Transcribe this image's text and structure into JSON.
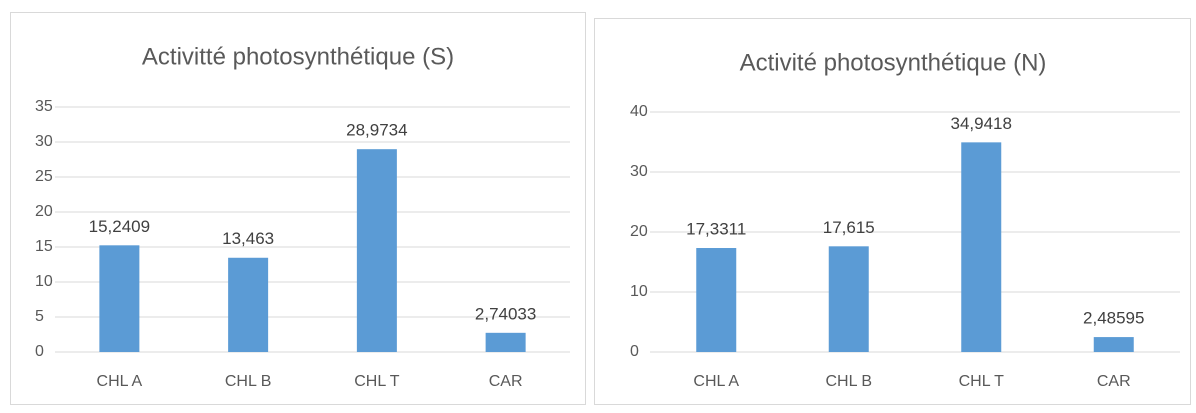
{
  "chart_data": [
    {
      "type": "bar",
      "title": "Activitté photosynthétique (S)",
      "categories": [
        "CHL A",
        "CHL B",
        "CHL T",
        "CAR"
      ],
      "values": [
        15.2409,
        13.463,
        28.9734,
        2.74033
      ],
      "value_labels": [
        "15,2409",
        "13,463",
        "28,9734",
        "2,74033"
      ],
      "color": "#5b9bd5",
      "ylim": [
        0,
        35
      ],
      "yticks": [
        0,
        5,
        10,
        15,
        20,
        25,
        30,
        35
      ],
      "grid": true
    },
    {
      "type": "bar",
      "title": "Activité photosynthétique (N)",
      "categories": [
        "CHL A",
        "CHL B",
        "CHL T",
        "CAR"
      ],
      "values": [
        17.3311,
        17.615,
        34.9418,
        2.48595
      ],
      "value_labels": [
        "17,3311",
        "17,615",
        "34,9418",
        "2,48595"
      ],
      "color": "#5b9bd5",
      "ylim": [
        0,
        40
      ],
      "yticks": [
        0,
        10,
        20,
        30,
        40
      ],
      "grid": true
    }
  ]
}
